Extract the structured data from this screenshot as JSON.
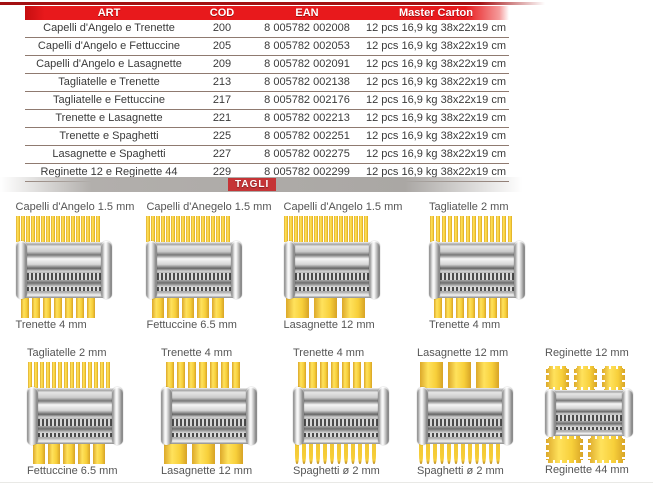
{
  "colors": {
    "accent_red": "#e8191c",
    "banner_gray": "#aaa7a4",
    "pasta_yellow": "#f7cf3a",
    "tagli_red": "#c53436"
  },
  "table": {
    "headers": [
      "ART",
      "COD",
      "EAN",
      "Master Carton"
    ],
    "rows": [
      [
        "Capelli d'Angelo e Trenette",
        "200",
        "8 005782 002008",
        "12 pcs 16,9 kg 38x22x19 cm"
      ],
      [
        "Capelli d'Angelo e Fettuccine",
        "205",
        "8 005782 002053",
        "12 pcs 16,9 kg 38x22x19 cm"
      ],
      [
        "Capelli d'Angelo e Lasagnette",
        "209",
        "8 005782 002091",
        "12 pcs 16,9 kg 38x22x19 cm"
      ],
      [
        "Tagliatelle e Trenette",
        "213",
        "8 005782 002138",
        "12 pcs 16,9 kg 38x22x19 cm"
      ],
      [
        "Tagliatelle e Fettuccine",
        "217",
        "8 005782 002176",
        "12 pcs 16,9 kg 38x22x19 cm"
      ],
      [
        "Trenette e Lasagnette",
        "221",
        "8 005782 002213",
        "12 pcs 16,9 kg 38x22x19 cm"
      ],
      [
        "Trenette e Spaghetti",
        "225",
        "8 005782 002251",
        "12 pcs 16,9 kg 38x22x19 cm"
      ],
      [
        "Lasagnette e Spaghetti",
        "227",
        "8 005782 002275",
        "12 pcs 16,9 kg 38x22x19 cm"
      ],
      [
        "Reginette 12 e Reginette 44",
        "229",
        "8 005782 002299",
        "12 pcs 16,9 kg 38x22x19 cm"
      ]
    ]
  },
  "section": {
    "tagli_label": "TAGLI"
  },
  "cutters": [
    {
      "top": {
        "label": "Capelli d'Angelo 1.5 mm",
        "mm": 1.5
      },
      "bottom": {
        "label": "Trenette 4 mm",
        "mm": 4
      }
    },
    {
      "top": {
        "label": "Capelli d'Anegelo 1.5 mm",
        "mm": 1.5
      },
      "bottom": {
        "label": "Fettuccine 6.5 mm",
        "mm": 6.5
      }
    },
    {
      "top": {
        "label": "Capelli d'Angelo 1.5 mm",
        "mm": 1.5
      },
      "bottom": {
        "label": "Lasagnette 12 mm",
        "mm": 12
      }
    },
    {
      "top": {
        "label": "Tagliatelle 2 mm",
        "mm": 2
      },
      "bottom": {
        "label": "Trenette 4 mm",
        "mm": 4
      }
    },
    {
      "top": {
        "label": "Tagliatelle 2 mm",
        "mm": 2
      },
      "bottom": {
        "label": "Fettuccine 6.5 mm",
        "mm": 6.5
      }
    },
    {
      "top": {
        "label": "Trenette 4 mm",
        "mm": 4
      },
      "bottom": {
        "label": "Lasagnette 12 mm",
        "mm": 12
      }
    },
    {
      "top": {
        "label": "Trenette 4 mm",
        "mm": 4
      },
      "bottom": {
        "label": "Spaghetti ø 2 mm",
        "mm": 2,
        "round": true
      }
    },
    {
      "top": {
        "label": "Lasagnette 12 mm",
        "mm": 12
      },
      "bottom": {
        "label": "Spaghetti ø 2 mm",
        "mm": 2,
        "round": true
      }
    },
    {
      "top": {
        "label": "Reginette 12 mm",
        "mm": 12,
        "serrated": true
      },
      "bottom": {
        "label": "Reginette 44 mm",
        "mm": 44,
        "serrated": true
      },
      "small": true
    }
  ]
}
